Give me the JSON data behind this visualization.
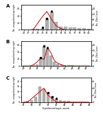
{
  "panel_A": {
    "label": "A",
    "weeks": [
      26,
      27,
      28,
      29,
      30,
      31,
      32,
      33,
      34,
      35,
      36,
      37,
      38,
      39,
      40
    ],
    "mosquitoes": [
      0,
      1,
      2,
      2,
      3,
      30,
      50,
      22,
      8,
      8,
      7,
      6,
      5,
      4,
      3
    ],
    "zika": [
      0,
      0,
      0,
      5,
      10,
      14,
      8,
      3,
      1,
      0,
      0,
      0,
      0,
      0,
      0
    ],
    "star_week_idx": 4,
    "square_week_idx": 5,
    "triangle_week_idx": 6,
    "mosq_ylim": [
      0,
      60
    ],
    "zika_ylim": [
      0,
      16
    ],
    "mosq_yticks": [
      0,
      20,
      40,
      60
    ],
    "zika_yticks": [
      0,
      4,
      8,
      12,
      16
    ],
    "xtick_step": 1
  },
  "panel_B": {
    "label": "B",
    "weeks": [
      29,
      30,
      31,
      32,
      33,
      34,
      35,
      36,
      37,
      38,
      39,
      40,
      41,
      42,
      43,
      44,
      45,
      46,
      47,
      48
    ],
    "mosquitoes": [
      0,
      0,
      1,
      2,
      5,
      20,
      55,
      50,
      30,
      12,
      6,
      4,
      3,
      2,
      2,
      1,
      1,
      1,
      0,
      0
    ],
    "zika": [
      0,
      0,
      0,
      1,
      3,
      6,
      5,
      14,
      10,
      4,
      2,
      1,
      0,
      0,
      0,
      0,
      0,
      0,
      0,
      0
    ],
    "star_week_idx": 5,
    "square_week_idx": 6,
    "triangle_week_idx": 7,
    "mosq_ylim": [
      0,
      60
    ],
    "zika_ylim": [
      0,
      16
    ],
    "mosq_yticks": [
      0,
      20,
      40,
      60
    ],
    "zika_yticks": [
      0,
      4,
      8,
      12,
      16
    ],
    "xtick_step": 2
  },
  "panel_C": {
    "label": "C",
    "weeks": [
      32,
      33,
      34,
      35,
      36,
      37,
      38,
      39,
      40,
      41,
      42,
      43,
      44,
      45,
      46,
      47,
      48
    ],
    "mosquitoes": [
      0,
      1,
      2,
      5,
      15,
      12,
      8,
      4,
      3,
      2,
      1,
      1,
      0,
      0,
      0,
      0,
      0
    ],
    "zika": [
      0,
      0,
      1,
      2,
      3,
      4,
      2,
      1,
      0,
      0,
      0,
      0,
      0,
      0,
      0,
      0,
      0
    ],
    "star_week_idx": 6,
    "square_week_idx": 7,
    "triangle_week_idx": 8,
    "mosq_ylim": [
      0,
      20
    ],
    "zika_ylim": [
      0,
      6
    ],
    "mosq_yticks": [
      0,
      5,
      10,
      15,
      20
    ],
    "zika_yticks": [
      0,
      2,
      4,
      6
    ],
    "xtick_step": 2
  },
  "bar_color": "#b0b0b0",
  "line_color": "#cc0000",
  "bg_color": "#ffffff",
  "xlabel": "Epidemiologic week",
  "ylabel_left": "No. mosquitoes/trap night",
  "ylabel_right": "No. Zika Cases"
}
